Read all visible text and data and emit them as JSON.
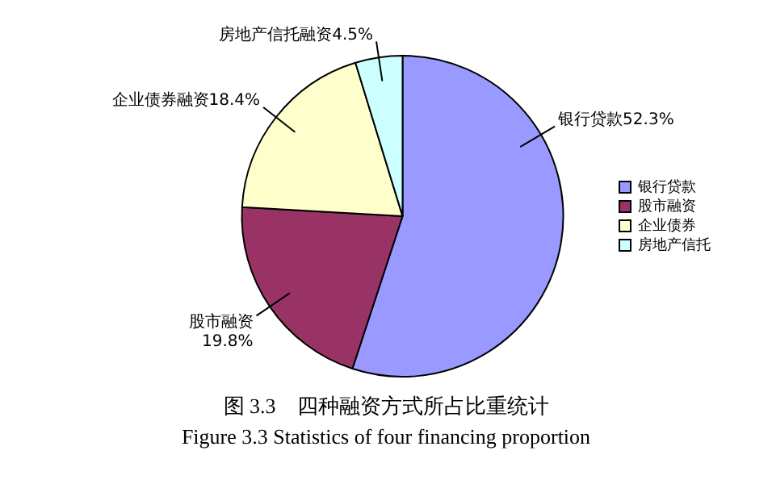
{
  "chart_data": {
    "type": "pie",
    "categories": [
      "银行贷款",
      "股市融资",
      "企业债券",
      "房地产信托"
    ],
    "values": [
      52.3,
      19.8,
      18.4,
      4.5
    ],
    "colors": [
      "#9999ff",
      "#993366",
      "#ffffcc",
      "#ccffff"
    ],
    "value_labels": [
      "银行贷款52.3%",
      "股市融资\n19.8%",
      "企业债券融资18.4%",
      "房地产信托融资4.5%"
    ],
    "legend": "right",
    "annotations": [
      "图 3.3　四种融资方式所占比重统计",
      "Figure 3.3 Statistics of four financing proportion"
    ]
  }
}
